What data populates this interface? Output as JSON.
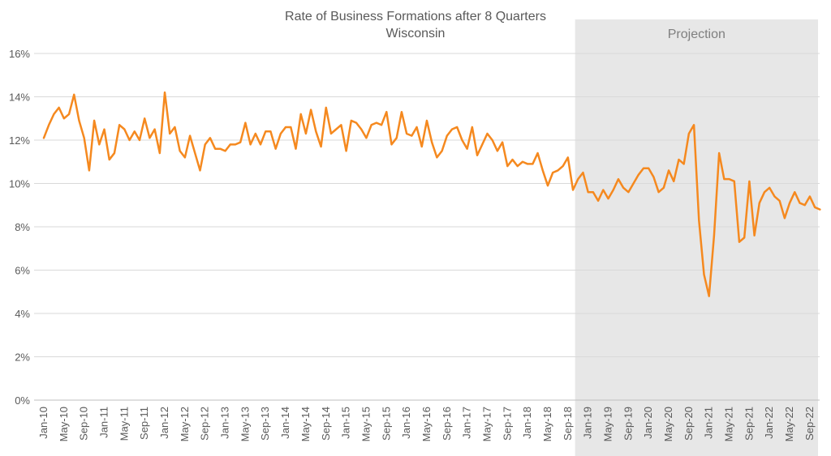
{
  "chart_data": {
    "type": "line",
    "title": "Rate of Business Formations after 8 Quarters",
    "subtitle": "Wisconsin",
    "xlabel": "",
    "ylabel": "",
    "ylim": [
      0,
      16
    ],
    "y_ticks": [
      "0%",
      "2%",
      "4%",
      "6%",
      "8%",
      "10%",
      "12%",
      "14%",
      "16%"
    ],
    "grid": "horizontal",
    "line_color": "#F5891F",
    "projection_shade_color": "#E7E7E7",
    "projection_label": "Projection",
    "projection_start": "Jan-19",
    "x_tick_labels": [
      "Jan-10",
      "May-10",
      "Sep-10",
      "Jan-11",
      "May-11",
      "Sep-11",
      "Jan-12",
      "May-12",
      "Sep-12",
      "Jan-13",
      "May-13",
      "Sep-13",
      "Jan-14",
      "May-14",
      "Sep-14",
      "Jan-15",
      "May-15",
      "Sep-15",
      "Jan-16",
      "May-16",
      "Sep-16",
      "Jan-17",
      "May-17",
      "Sep-17",
      "Jan-18",
      "May-18",
      "Sep-18",
      "Jan-19",
      "May-19",
      "Sep-19",
      "Jan-20",
      "May-20",
      "Sep-20",
      "Jan-21",
      "May-21",
      "Sep-21",
      "Jan-22",
      "May-22",
      "Sep-22"
    ],
    "x_start": "Jan-10",
    "series": [
      {
        "values": [
          12.1,
          12.7,
          13.2,
          13.5,
          13.0,
          13.2,
          14.1,
          12.9,
          12.1,
          10.6,
          12.9,
          11.8,
          12.5,
          11.1,
          11.4,
          12.7,
          12.5,
          12.0,
          12.4,
          12.0,
          13.0,
          12.1,
          12.5,
          11.4,
          14.2,
          12.3,
          12.6,
          11.5,
          11.2,
          12.2,
          11.4,
          10.6,
          11.8,
          12.1,
          11.6,
          11.6,
          11.5,
          11.8,
          11.8,
          11.9,
          12.8,
          11.8,
          12.3,
          11.8,
          12.4,
          12.4,
          11.6,
          12.3,
          12.6,
          12.6,
          11.6,
          13.2,
          12.3,
          13.4,
          12.4,
          11.7,
          13.5,
          12.3,
          12.5,
          12.7,
          11.5,
          12.9,
          12.8,
          12.5,
          12.1,
          12.7,
          12.8,
          12.7,
          13.3,
          11.8,
          12.1,
          13.3,
          12.3,
          12.2,
          12.6,
          11.7,
          12.9,
          11.9,
          11.2,
          11.5,
          12.2,
          12.5,
          12.6,
          12.0,
          11.6,
          12.6,
          11.3,
          11.8,
          12.3,
          12.0,
          11.5,
          11.9,
          10.8,
          11.1,
          10.8,
          11.0,
          10.9,
          10.9,
          11.4,
          10.6,
          9.9,
          10.5,
          10.6,
          10.8,
          11.2,
          9.7,
          10.2,
          10.5,
          9.6,
          9.6,
          9.2,
          9.7,
          9.3,
          9.7,
          10.2,
          9.8,
          9.6,
          10.0,
          10.4,
          10.7,
          10.7,
          10.3,
          9.6,
          9.8,
          10.6,
          10.1,
          11.1,
          10.9,
          12.3,
          12.7,
          8.3,
          5.8,
          4.8,
          7.6,
          11.4,
          10.2,
          10.2,
          10.1,
          7.3,
          7.5,
          10.1,
          7.6,
          9.1,
          9.6,
          9.8,
          9.4,
          9.2,
          8.4,
          9.1,
          9.6,
          9.1,
          9.0,
          9.4,
          8.9,
          8.8
        ]
      }
    ]
  }
}
